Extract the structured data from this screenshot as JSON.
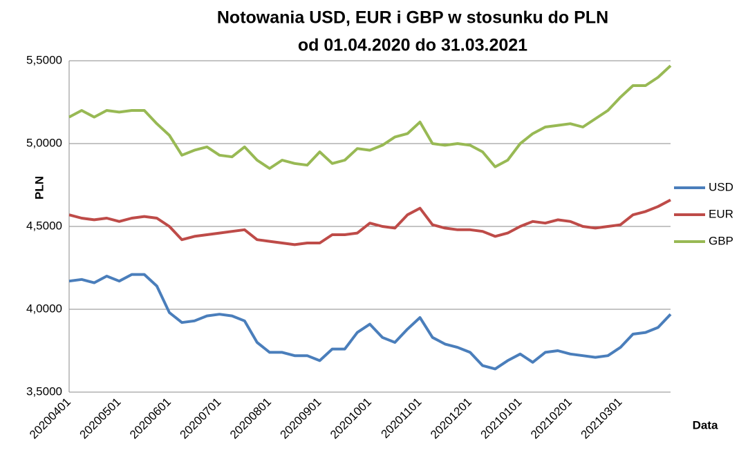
{
  "chart_data": {
    "type": "line",
    "title": "Notowania USD, EUR i GBP w stosunku do PLN",
    "subtitle": "od 01.04.2020 do 31.03.2021",
    "x_label": "Data",
    "y_label": "PLN",
    "categories": [
      "20200401",
      null,
      null,
      null,
      "20200501",
      null,
      null,
      null,
      "20200601",
      null,
      null,
      null,
      "20200701",
      null,
      null,
      null,
      "20200801",
      null,
      null,
      null,
      "20200901",
      null,
      null,
      null,
      "20201001",
      null,
      null,
      null,
      "20201101",
      null,
      null,
      null,
      "20201201",
      null,
      null,
      null,
      "20210101",
      null,
      null,
      null,
      "20210201",
      null,
      null,
      null,
      "20210301",
      null,
      null,
      null,
      null
    ],
    "series": [
      {
        "name": "USD",
        "color": "#4a7ebb",
        "values": [
          4.17,
          4.18,
          4.16,
          4.2,
          4.17,
          4.21,
          4.21,
          4.14,
          3.98,
          3.92,
          3.93,
          3.96,
          3.97,
          3.96,
          3.93,
          3.8,
          3.74,
          3.74,
          3.72,
          3.72,
          3.69,
          3.76,
          3.76,
          3.86,
          3.91,
          3.83,
          3.8,
          3.88,
          3.95,
          3.83,
          3.79,
          3.77,
          3.74,
          3.66,
          3.64,
          3.69,
          3.73,
          3.68,
          3.74,
          3.75,
          3.73,
          3.72,
          3.71,
          3.72,
          3.77,
          3.85,
          3.86,
          3.89,
          3.97
        ]
      },
      {
        "name": "EUR",
        "color": "#be4b48",
        "values": [
          4.57,
          4.55,
          4.54,
          4.55,
          4.53,
          4.55,
          4.56,
          4.55,
          4.5,
          4.42,
          4.44,
          4.45,
          4.46,
          4.47,
          4.48,
          4.42,
          4.41,
          4.4,
          4.39,
          4.4,
          4.4,
          4.45,
          4.45,
          4.46,
          4.52,
          4.5,
          4.49,
          4.57,
          4.61,
          4.51,
          4.49,
          4.48,
          4.48,
          4.47,
          4.44,
          4.46,
          4.5,
          4.53,
          4.52,
          4.54,
          4.53,
          4.5,
          4.49,
          4.5,
          4.51,
          4.57,
          4.59,
          4.62,
          4.66
        ]
      },
      {
        "name": "GBP",
        "color": "#98b954",
        "values": [
          5.16,
          5.2,
          5.16,
          5.2,
          5.19,
          5.2,
          5.2,
          5.12,
          5.05,
          4.93,
          4.96,
          4.98,
          4.93,
          4.92,
          4.98,
          4.9,
          4.85,
          4.9,
          4.88,
          4.87,
          4.95,
          4.88,
          4.9,
          4.97,
          4.96,
          4.99,
          5.04,
          5.06,
          5.13,
          5.0,
          4.99,
          5.0,
          4.99,
          4.95,
          4.86,
          4.9,
          5.0,
          5.06,
          5.1,
          5.11,
          5.12,
          5.1,
          5.15,
          5.2,
          5.28,
          5.35,
          5.35,
          5.4,
          5.47
        ]
      }
    ],
    "ylim": [
      3.5,
      5.5
    ],
    "yticks": [
      {
        "value": 3.5,
        "label": "3,5000"
      },
      {
        "value": 4.0,
        "label": "4,0000"
      },
      {
        "value": 4.5,
        "label": "4,5000"
      },
      {
        "value": 5.0,
        "label": "5,0000"
      },
      {
        "value": 5.5,
        "label": "5,5000"
      }
    ],
    "grid": true,
    "legend": "right"
  }
}
